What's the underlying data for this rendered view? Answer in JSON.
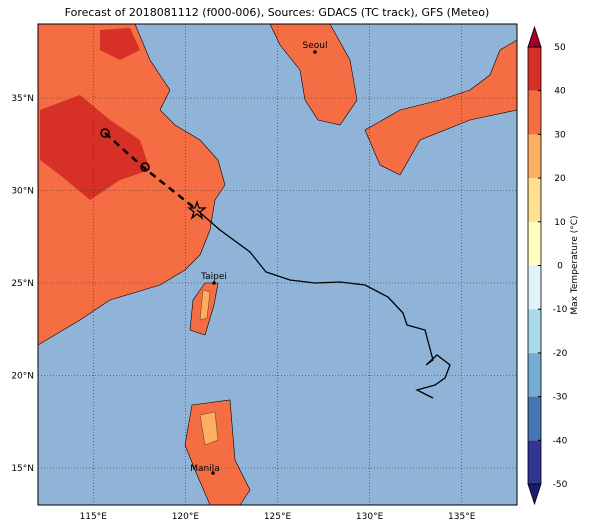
{
  "title": "Forecast of 2018081112 (f000-006), Sources: GDACS (TC track), GFS (Meteo)",
  "map": {
    "lonlim": [
      112,
      138
    ],
    "latlim": [
      13,
      39
    ],
    "lon_ticks": [
      {
        "value": 115,
        "label": "115°E"
      },
      {
        "value": 120,
        "label": "120°E"
      },
      {
        "value": 125,
        "label": "125°E"
      },
      {
        "value": 130,
        "label": "130°E"
      },
      {
        "value": 135,
        "label": "135°E"
      }
    ],
    "lat_ticks": [
      {
        "value": 15,
        "label": "15°N"
      },
      {
        "value": 20,
        "label": "20°N"
      },
      {
        "value": 25,
        "label": "25°N"
      },
      {
        "value": 30,
        "label": "30°N"
      },
      {
        "value": 35,
        "label": "35°N"
      }
    ],
    "cities": [
      "Seoul",
      "Taipei",
      "Manila"
    ],
    "ocean_color": "#90b4d8"
  },
  "colorbar": {
    "label": "Max Temperature (°C)",
    "ticks": [
      -50,
      -40,
      -30,
      -20,
      -10,
      0,
      10,
      20,
      30,
      40,
      50
    ],
    "colors": [
      "#313695",
      "#4575b4",
      "#74add1",
      "#abd9e9",
      "#e0f3f8",
      "#fefec0",
      "#fee090",
      "#fdae61",
      "#f46d43",
      "#d73027"
    ],
    "under_color": "#1a1a6e",
    "over_color": "#a50026"
  }
}
